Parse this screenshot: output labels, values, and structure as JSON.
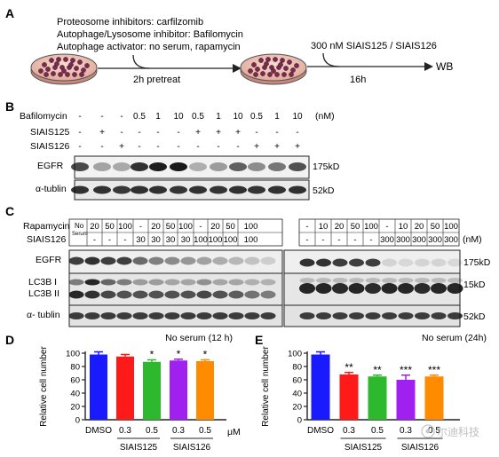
{
  "panelA": {
    "letter": "A",
    "lines": [
      "Proteosome inhibitors: carfilzomib",
      "Autophage/Lysosome inhibitor: Bafilomycin",
      "Autophage activator: no serum, rapamycin"
    ],
    "step1": "2h pretreat",
    "step2_top": "300 nM SIAIS125 / SIAIS126",
    "step2_bottom": "16h",
    "end": "WB"
  },
  "panelB": {
    "letter": "B",
    "row_labels": [
      "Bafilomycin",
      "SIAIS125",
      "SIAIS126"
    ],
    "bafilomycin": [
      "-",
      "-",
      "-",
      "0.5",
      "1",
      "10",
      "0.5",
      "1",
      "10",
      "0.5",
      "1",
      "10"
    ],
    "siais125": [
      "-",
      "+",
      "-",
      "-",
      "-",
      "-",
      "+",
      "+",
      "+",
      "-",
      "-",
      "-"
    ],
    "siais126": [
      "-",
      "-",
      "+",
      "-",
      "-",
      "-",
      "-",
      "-",
      "-",
      "+",
      "+",
      "+"
    ],
    "unit": "(nM)",
    "blot_labels": [
      "EGFR",
      "α-tublin"
    ],
    "sizes": [
      "175kD",
      "52kD"
    ]
  },
  "panelC": {
    "letter": "C",
    "row_labels": [
      "Rapamycin",
      "SIAIS126"
    ],
    "noserum_top": "No",
    "noserum_bottom": "Serum",
    "rapamycin": [
      "-",
      "20",
      "50",
      "100",
      "-",
      "20",
      "50",
      "100",
      "-",
      "20",
      "50",
      "100",
      "-",
      "10",
      "20",
      "50",
      "100",
      "-",
      "10",
      "20",
      "50",
      "100"
    ],
    "siais126": [
      "-",
      "-",
      "-",
      "-",
      "30",
      "30",
      "30",
      "30",
      "100",
      "100",
      "100",
      "100",
      "-",
      "-",
      "-",
      "-",
      "-",
      "300",
      "300",
      "300",
      "300",
      "300"
    ],
    "unit": "(nM)",
    "blot_labels": [
      "EGFR",
      "LC3B I",
      "LC3B II",
      "α- tublin"
    ],
    "sizes": [
      "175kD",
      "15kD",
      "52kD"
    ]
  },
  "panelD": {
    "letter": "D",
    "unit_label": "μM",
    "group_labels": [
      "SIAIS125",
      "SIAIS126"
    ],
    "sig": [
      "",
      "",
      "*",
      "*",
      "*"
    ],
    "chart_data": {
      "type": "bar",
      "title": "No serum (12 h)",
      "ylabel": "Relative cell number",
      "categories": [
        "DMSO",
        "0.3",
        "0.5",
        "0.3",
        "0.5"
      ],
      "values": [
        98,
        95,
        87,
        89,
        88
      ],
      "errors": [
        4,
        3,
        3,
        2,
        2
      ],
      "colors": [
        "#1a1aff",
        "#ff1a1a",
        "#2db82d",
        "#a020f0",
        "#ff8c00"
      ],
      "ylim": [
        0,
        100
      ],
      "yticks": [
        0,
        20,
        40,
        60,
        80,
        100
      ]
    }
  },
  "panelE": {
    "letter": "E",
    "group_labels": [
      "SIAIS125",
      "SIAIS126"
    ],
    "sig": [
      "",
      "**",
      "**",
      "***",
      "***"
    ],
    "watermark": "尔迪科技",
    "chart_data": {
      "type": "bar",
      "title": "No serum (24h)",
      "ylabel": "Relative cell number",
      "categories": [
        "DMSO",
        "0.3",
        "0.5",
        "0.3",
        "0.5"
      ],
      "values": [
        98,
        68,
        65,
        60,
        65
      ],
      "errors": [
        4,
        3,
        2,
        7,
        2
      ],
      "colors": [
        "#1a1aff",
        "#ff1a1a",
        "#2db82d",
        "#a020f0",
        "#ff8c00"
      ],
      "ylim": [
        0,
        100
      ],
      "yticks": [
        0,
        20,
        40,
        60,
        80,
        100
      ]
    }
  }
}
